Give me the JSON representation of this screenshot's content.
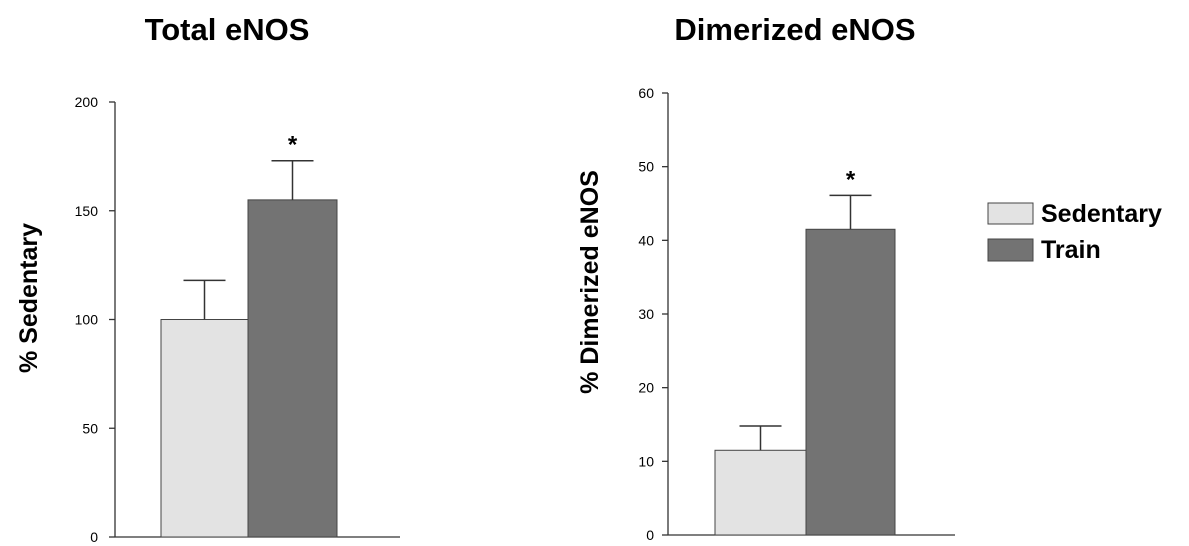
{
  "colors": {
    "Sedentary": "#e3e3e3",
    "Train": "#737373",
    "axis": "#333333",
    "background": "#ffffff"
  },
  "legend": {
    "placement": "right",
    "items": [
      {
        "name": "Sedentary",
        "color": "#e3e3e3"
      },
      {
        "name": "Train",
        "color": "#737373"
      }
    ]
  },
  "chart_data": [
    {
      "type": "bar",
      "title": "Total eNOS",
      "xlabel": "",
      "ylabel": "% Sedentary",
      "ylim": [
        0,
        200
      ],
      "yticks": [
        "0",
        "50",
        "100",
        "150",
        "200"
      ],
      "grid": false,
      "series": [
        {
          "name": "Sedentary",
          "value": 100,
          "error": 18
        },
        {
          "name": "Train",
          "value": 155,
          "error": 18,
          "annotation": "*"
        }
      ]
    },
    {
      "type": "bar",
      "title": "Dimerized eNOS",
      "xlabel": "",
      "ylabel": "% Dimerized eNOS",
      "ylim": [
        0,
        60
      ],
      "yticks": [
        "0",
        "10",
        "20",
        "30",
        "40",
        "50",
        "60"
      ],
      "grid": false,
      "series": [
        {
          "name": "Sedentary",
          "value": 11.5,
          "error": 3.3
        },
        {
          "name": "Train",
          "value": 41.5,
          "error": 4.6,
          "annotation": "*"
        }
      ]
    }
  ]
}
